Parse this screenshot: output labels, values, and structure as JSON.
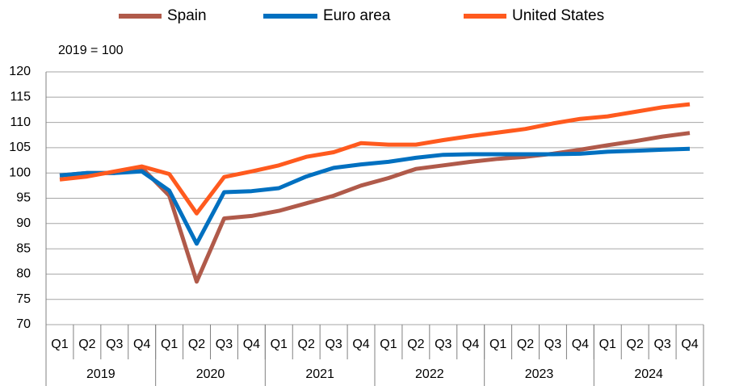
{
  "chart_data": {
    "type": "line",
    "annotation": "2019 = 100",
    "categories": [
      "Q1",
      "Q2",
      "Q3",
      "Q4",
      "Q1",
      "Q2",
      "Q3",
      "Q4",
      "Q1",
      "Q2",
      "Q3",
      "Q4",
      "Q1",
      "Q2",
      "Q3",
      "Q4",
      "Q1",
      "Q2",
      "Q3",
      "Q4",
      "Q1",
      "Q2",
      "Q3",
      "Q4"
    ],
    "category_groups": [
      "2019",
      "2020",
      "2021",
      "2022",
      "2023",
      "2024"
    ],
    "series": [
      {
        "name": "Spain",
        "color": "#b05a4a",
        "values": [
          99.5,
          100,
          100,
          101,
          95.5,
          78.5,
          91,
          91.5,
          92.5,
          94,
          95.5,
          97.5,
          99,
          100.8,
          101.5,
          102.2,
          102.8,
          103.2,
          103.8,
          104.6,
          105.5,
          106.3,
          107.2,
          107.9
        ]
      },
      {
        "name": "Euro area",
        "color": "#0070c0",
        "values": [
          99.5,
          100,
          100,
          100.3,
          96.5,
          86,
          96.2,
          96.4,
          97,
          99.3,
          101,
          101.7,
          102.2,
          103,
          103.6,
          103.7,
          103.7,
          103.7,
          103.7,
          103.8,
          104.2,
          104.4,
          104.6,
          104.8
        ]
      },
      {
        "name": "United States",
        "color": "#ff5a1e",
        "values": [
          98.7,
          99.3,
          100.3,
          101.3,
          99.8,
          92,
          99.2,
          100.3,
          101.5,
          103.2,
          104.1,
          105.9,
          105.6,
          105.6,
          106.5,
          107.3,
          108,
          108.7,
          109.8,
          110.7,
          111.2,
          112.1,
          113,
          113.6
        ]
      }
    ],
    "ylim": [
      70,
      120
    ],
    "yticks": [
      70,
      75,
      80,
      85,
      90,
      95,
      100,
      105,
      110,
      115,
      120
    ],
    "grid": true
  }
}
